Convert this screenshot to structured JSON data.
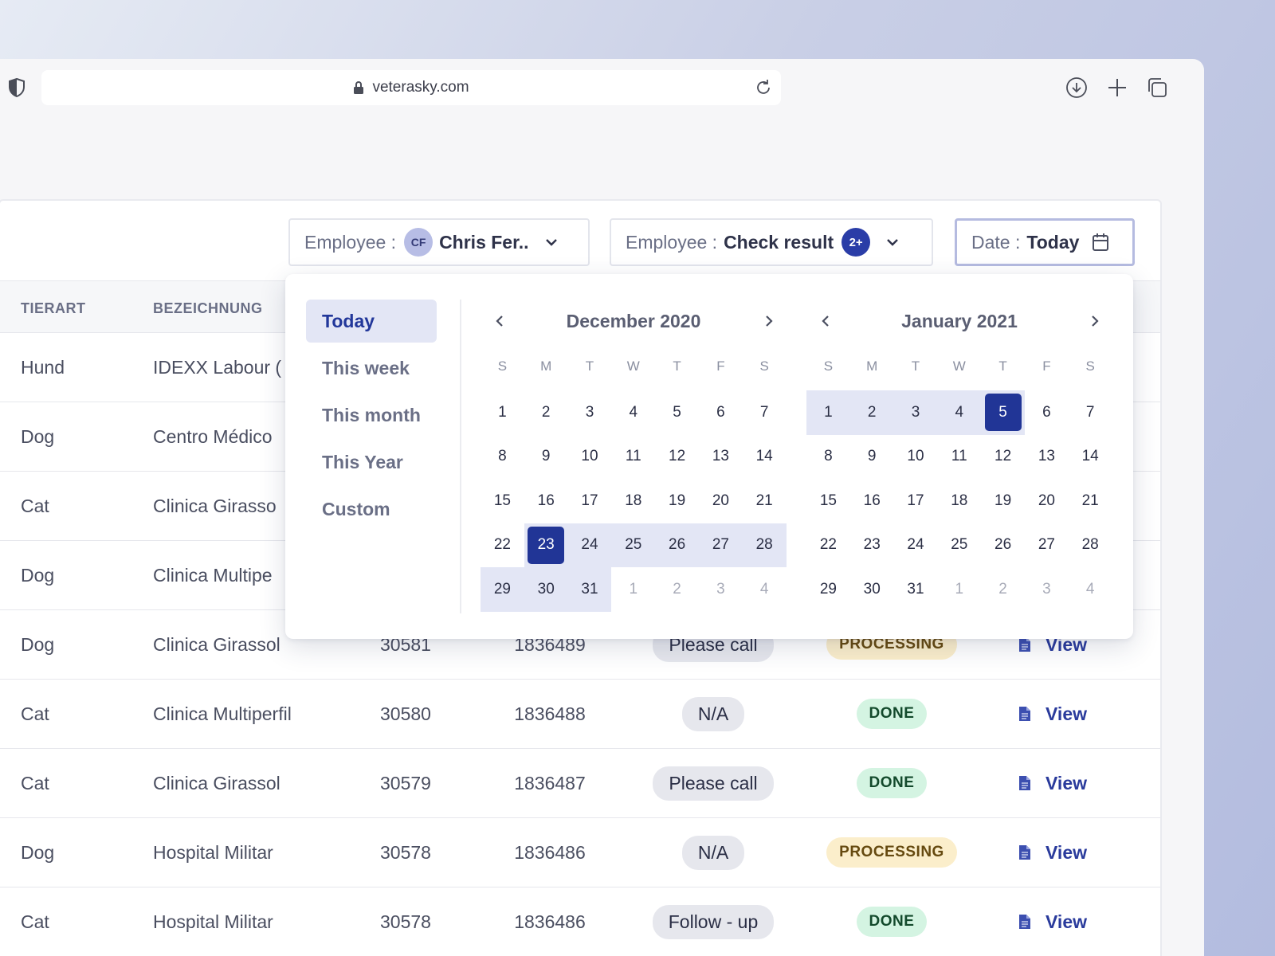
{
  "browser": {
    "url": "veterasky.com"
  },
  "filters": {
    "employee1": {
      "label": "Employee :",
      "initials": "CF",
      "value": "Chris Fer.."
    },
    "employee2": {
      "label": "Employee :",
      "value": "Check result",
      "badge": "2+"
    },
    "date": {
      "label": "Date :",
      "value": "Today"
    }
  },
  "table": {
    "headers": [
      "TIERART",
      "BEZEICHNUNG"
    ],
    "rows": [
      {
        "type": "Hund",
        "name": "IDEXX Labour ("
      },
      {
        "type": "Dog",
        "name": "Centro Médico"
      },
      {
        "type": "Cat",
        "name": "Clinica Girasso"
      },
      {
        "type": "Dog",
        "name": "Clinica Multipe"
      },
      {
        "type": "Dog",
        "name": "Clinica Girassol",
        "id": "30581",
        "number": "1836489",
        "note": "Please call",
        "status": "PROCESSING",
        "action": "View"
      },
      {
        "type": "Cat",
        "name": "Clinica Multiperfil",
        "id": "30580",
        "number": "1836488",
        "note": "N/A",
        "status": "DONE",
        "action": "View"
      },
      {
        "type": "Cat",
        "name": "Clinica Girassol",
        "id": "30579",
        "number": "1836487",
        "note": "Please call",
        "status": "DONE",
        "action": "View"
      },
      {
        "type": "Dog",
        "name": "Hospital Militar",
        "id": "30578",
        "number": "1836486",
        "note": "N/A",
        "status": "PROCESSING",
        "action": "View"
      },
      {
        "type": "Cat",
        "name": "Hospital Militar",
        "id": "30578",
        "number": "1836486",
        "note": "Follow - up",
        "status": "DONE",
        "action": "View"
      }
    ]
  },
  "datepicker": {
    "presets": [
      "Today",
      "This week",
      "This month",
      "This Year",
      "Custom"
    ],
    "active_preset": "Today",
    "weekdays": [
      "S",
      "M",
      "T",
      "W",
      "T",
      "F",
      "S"
    ],
    "months": [
      {
        "title": "December 2020",
        "weeks": [
          [
            "1",
            "2",
            "3",
            "4",
            "5",
            "6",
            "7"
          ],
          [
            "8",
            "9",
            "10",
            "11",
            "12",
            "13",
            "14"
          ],
          [
            "15",
            "16",
            "17",
            "18",
            "19",
            "20",
            "21"
          ],
          [
            "22",
            "23",
            "24",
            "25",
            "26",
            "27",
            "28"
          ],
          [
            "29",
            "30",
            "31",
            "1",
            "2",
            "3",
            "4"
          ]
        ],
        "muted": [
          [
            4,
            3
          ],
          [
            4,
            4
          ],
          [
            4,
            5
          ],
          [
            4,
            6
          ]
        ],
        "range": [
          [
            3,
            1
          ],
          [
            3,
            2
          ],
          [
            3,
            3
          ],
          [
            3,
            4
          ],
          [
            3,
            5
          ],
          [
            3,
            6
          ],
          [
            4,
            0
          ],
          [
            4,
            1
          ],
          [
            4,
            2
          ]
        ],
        "selected": [
          [
            3,
            1
          ]
        ]
      },
      {
        "title": "January 2021",
        "weeks": [
          [
            "1",
            "2",
            "3",
            "4",
            "5",
            "6",
            "7"
          ],
          [
            "8",
            "9",
            "10",
            "11",
            "12",
            "13",
            "14"
          ],
          [
            "15",
            "16",
            "17",
            "18",
            "19",
            "20",
            "21"
          ],
          [
            "22",
            "23",
            "24",
            "25",
            "26",
            "27",
            "28"
          ],
          [
            "29",
            "30",
            "31",
            "1",
            "2",
            "3",
            "4"
          ]
        ],
        "muted": [
          [
            4,
            3
          ],
          [
            4,
            4
          ],
          [
            4,
            5
          ],
          [
            4,
            6
          ]
        ],
        "range": [
          [
            0,
            0
          ],
          [
            0,
            1
          ],
          [
            0,
            2
          ],
          [
            0,
            3
          ],
          [
            0,
            4
          ]
        ],
        "selected": [
          [
            0,
            4
          ]
        ]
      }
    ]
  },
  "colors": {
    "accent": "#213596",
    "range": "#e3e6f5",
    "done_bg": "#d4f4e2",
    "processing_bg": "#fbeecb"
  }
}
